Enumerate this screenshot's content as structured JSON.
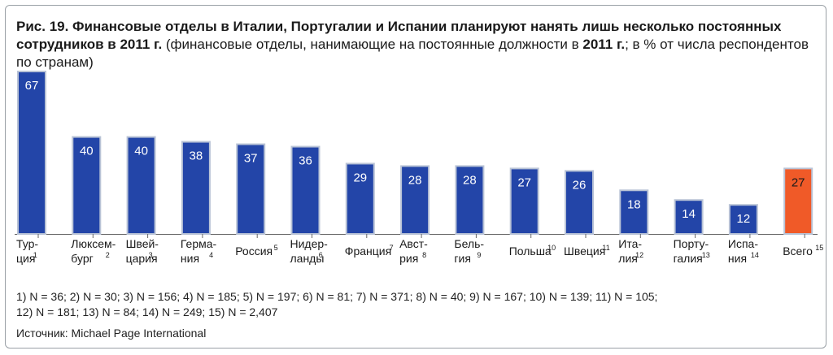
{
  "title": {
    "bold": "Рис. 19. Финансовые отделы в Италии, Португалии и Испании планируют нанять лишь несколько постоянных сотрудников в 2011 г.",
    "normal": " (финансовые отделы, нанимающие на постоянные должности в ",
    "bold2": "2011 г.",
    "normal2": "; в % от числа респондентов по странам)"
  },
  "colors": {
    "bar": "#2345a8",
    "total": "#f05a28",
    "bar_stroke": "#b9c3d6",
    "axis": "#666666"
  },
  "chart_data": {
    "type": "bar",
    "categories": [
      {
        "lines": [
          "Тур-",
          "ция"
        ],
        "sup": "1"
      },
      {
        "lines": [
          "Люксем-",
          "бург"
        ],
        "sup": "2"
      },
      {
        "lines": [
          "Швей-",
          "цария"
        ],
        "sup": "3"
      },
      {
        "lines": [
          "Герма-",
          "ния"
        ],
        "sup": "4"
      },
      {
        "lines": [
          "Россия"
        ],
        "sup": "5"
      },
      {
        "lines": [
          "Нидер-",
          "ланды"
        ],
        "sup": "6"
      },
      {
        "lines": [
          "Франция"
        ],
        "sup": "7"
      },
      {
        "lines": [
          "Авст-",
          "рия"
        ],
        "sup": "8"
      },
      {
        "lines": [
          "Бель-",
          "гия"
        ],
        "sup": "9"
      },
      {
        "lines": [
          "Польша"
        ],
        "sup": "10"
      },
      {
        "lines": [
          "Швеция"
        ],
        "sup": "11"
      },
      {
        "lines": [
          "Ита-",
          "лия"
        ],
        "sup": "12"
      },
      {
        "lines": [
          "Порту-",
          "галия"
        ],
        "sup": "13"
      },
      {
        "lines": [
          "Испа-",
          "ния"
        ],
        "sup": "14"
      },
      {
        "lines": [
          "Всего"
        ],
        "sup": "15"
      }
    ],
    "values": [
      67,
      40,
      40,
      38,
      37,
      36,
      29,
      28,
      28,
      27,
      26,
      18,
      14,
      12,
      27
    ],
    "highlight_index": 14,
    "ylim": [
      0,
      70
    ]
  },
  "notes": [
    "1) N = 36;  2) N = 30;  3) N = 156;  4) N = 185;  5) N = 197;  6) N = 81;  7) N = 371;  8) N = 40;  9) N = 167;  10) N = 139;  11) N = 105;",
    "12) N = 181;  13) N = 84;  14) N = 249;  15) N = 2,407"
  ],
  "source": "Источник: Michael Page International"
}
